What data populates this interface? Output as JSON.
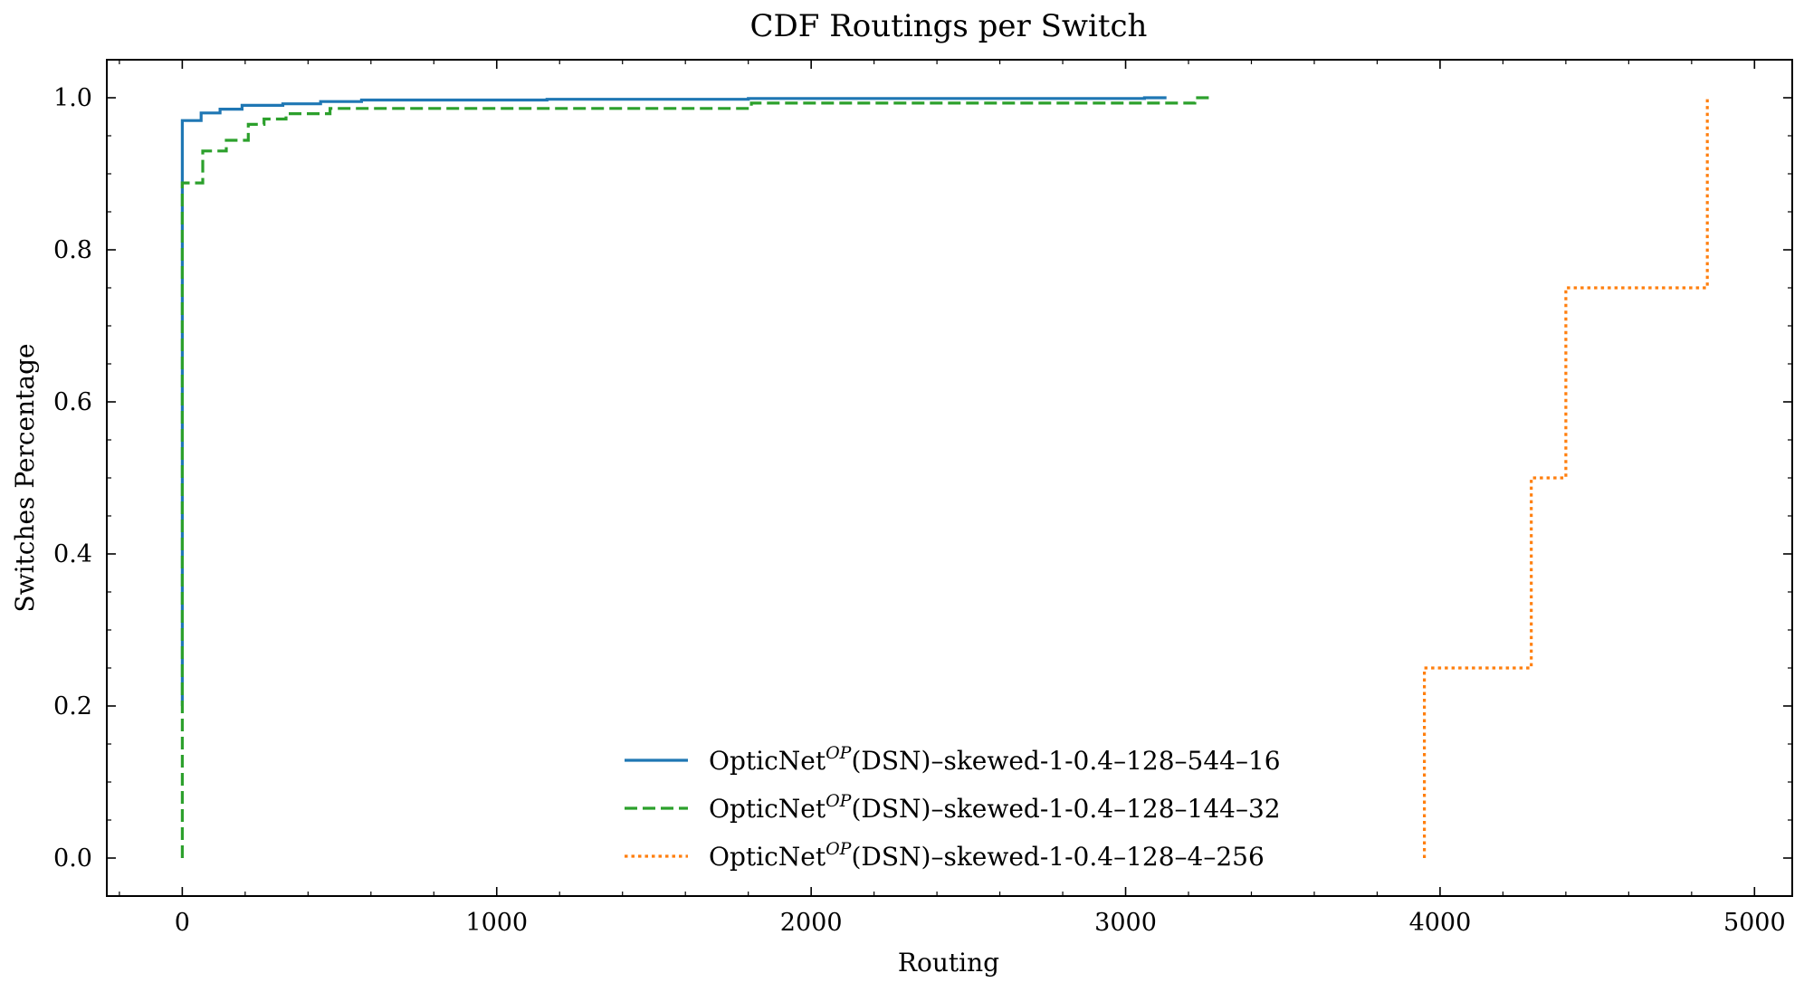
{
  "chart_data": {
    "type": "line",
    "step": true,
    "title": "CDF Routings per Switch",
    "xlabel": "Routing",
    "ylabel": "Switches Percentage",
    "xlim": [
      -240,
      5120
    ],
    "ylim": [
      -0.05,
      1.05
    ],
    "xticks": [
      0,
      1000,
      2000,
      3000,
      4000,
      5000
    ],
    "xtick_labels": [
      "0",
      "1000",
      "2000",
      "3000",
      "4000",
      "5000"
    ],
    "yticks": [
      0.0,
      0.2,
      0.4,
      0.6,
      0.8,
      1.0
    ],
    "ytick_labels": [
      "0.0",
      "0.2",
      "0.4",
      "0.6",
      "0.8",
      "1.0"
    ],
    "grid": false,
    "legend_position": "lower-center",
    "series": [
      {
        "name_prefix": "OpticNet",
        "name_sup": "OP",
        "name_suffix": "(DSN)–skewed-1-0.4–128–544–16",
        "color": "#1f77b4",
        "dash": "solid",
        "x": [
          0,
          0,
          60,
          60,
          120,
          120,
          190,
          190,
          320,
          320,
          440,
          440,
          570,
          570,
          1160,
          1160,
          1800,
          1800,
          3060,
          3060,
          3130
        ],
        "y": [
          0.2,
          0.97,
          0.97,
          0.98,
          0.98,
          0.985,
          0.985,
          0.99,
          0.99,
          0.992,
          0.992,
          0.995,
          0.995,
          0.997,
          0.997,
          0.998,
          0.998,
          0.999,
          0.999,
          1.0,
          1.0
        ]
      },
      {
        "name_prefix": "OpticNet",
        "name_sup": "OP",
        "name_suffix": "(DSN)–skewed-1-0.4–128–144–32",
        "color": "#2ca02c",
        "dash": "dashed",
        "x": [
          0,
          0,
          65,
          65,
          140,
          140,
          210,
          210,
          260,
          260,
          330,
          330,
          470,
          470,
          1810,
          1810,
          3220,
          3220,
          3280
        ],
        "y": [
          0.0,
          0.888,
          0.888,
          0.93,
          0.93,
          0.944,
          0.944,
          0.965,
          0.965,
          0.972,
          0.972,
          0.979,
          0.979,
          0.986,
          0.986,
          0.993,
          0.993,
          1.0,
          1.0
        ]
      },
      {
        "name_prefix": "OpticNet",
        "name_sup": "OP",
        "name_suffix": "(DSN)–skewed-1-0.4–128–4–256",
        "color": "#ff7f0e",
        "dash": "dotted",
        "x": [
          3950,
          3950,
          4290,
          4290,
          4400,
          4400,
          4850,
          4850
        ],
        "y": [
          0.0,
          0.25,
          0.25,
          0.5,
          0.5,
          0.75,
          0.75,
          1.0
        ]
      }
    ]
  }
}
